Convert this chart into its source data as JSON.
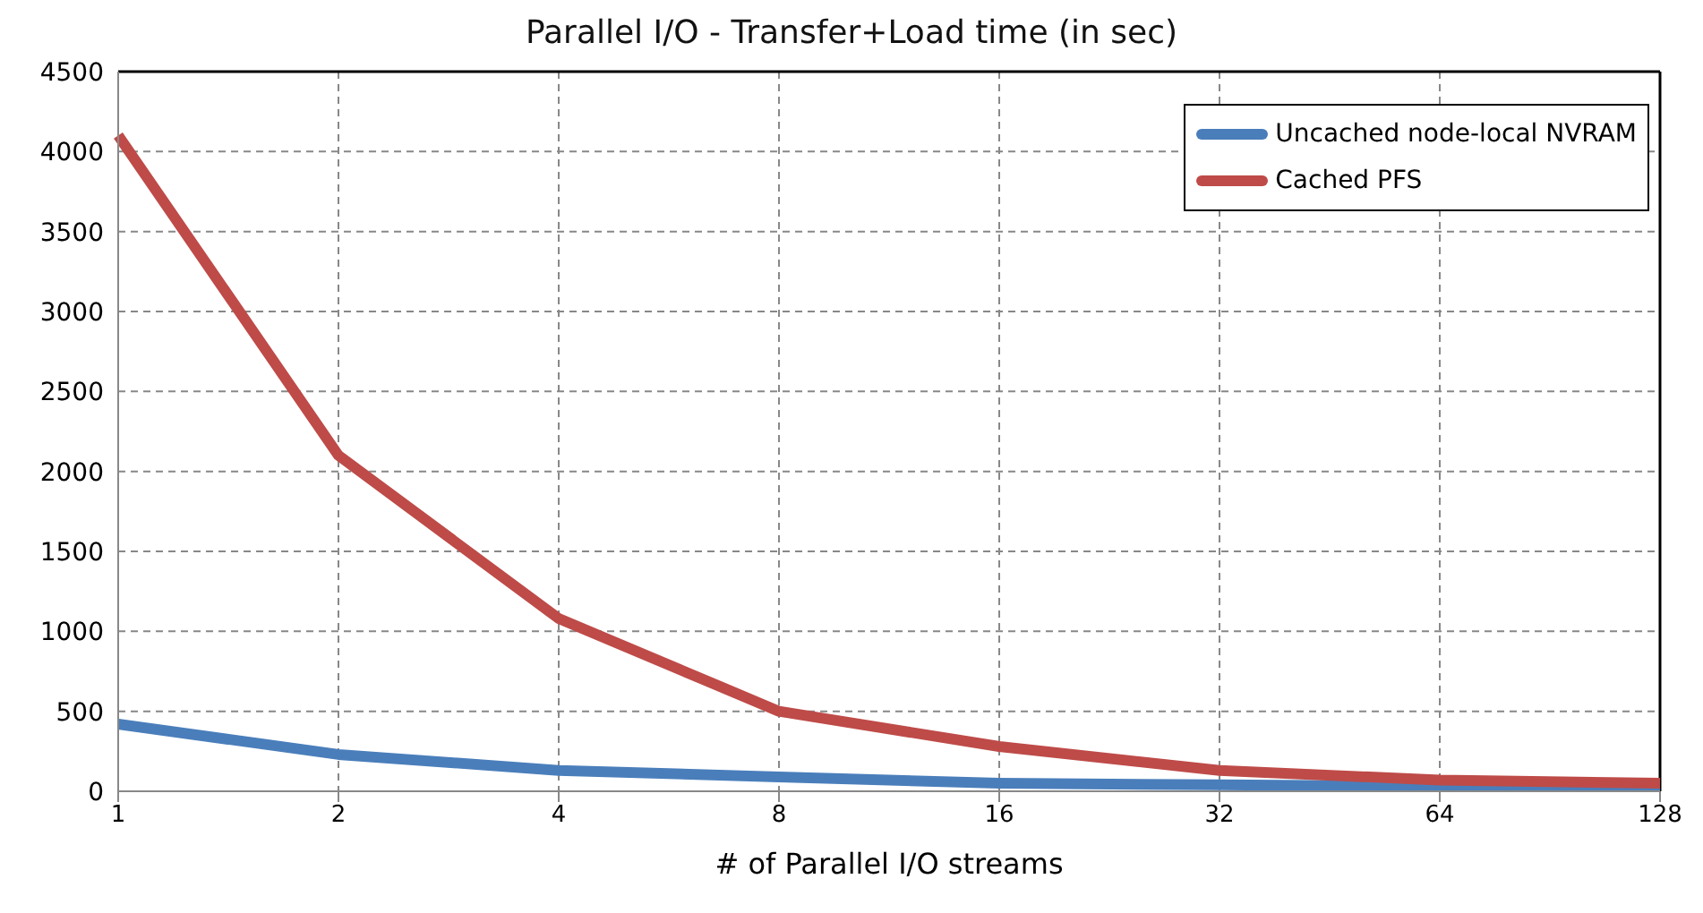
{
  "chart_data": {
    "type": "line",
    "title": "Parallel I/O - Transfer+Load time (in sec)",
    "xlabel": "# of Parallel I/O streams",
    "categories": [
      "1",
      "2",
      "4",
      "8",
      "16",
      "32",
      "64",
      "128"
    ],
    "series": [
      {
        "name": "Uncached node-local NVRAM",
        "color": "#4a7ebb",
        "values": [
          420,
          230,
          130,
          90,
          50,
          40,
          30,
          30
        ]
      },
      {
        "name": "Cached PFS",
        "color": "#be4b48",
        "values": [
          4100,
          2100,
          1080,
          500,
          280,
          130,
          70,
          50
        ]
      }
    ],
    "ylim": [
      0,
      4500
    ],
    "yticks": [
      0,
      500,
      1000,
      1500,
      2000,
      2500,
      3000,
      3500,
      4000,
      4500
    ],
    "grid": true,
    "legend": "top right",
    "marker": "none",
    "line_style": "solid"
  }
}
